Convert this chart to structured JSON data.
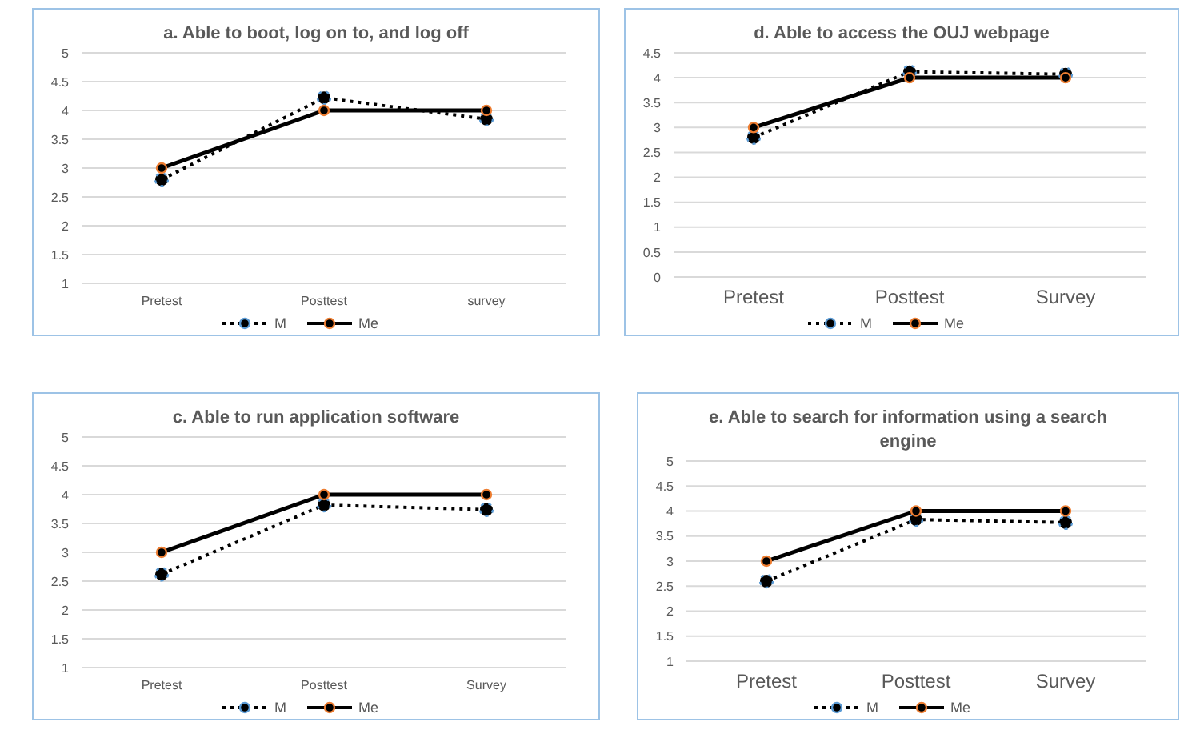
{
  "chart_data": [
    {
      "type": "line",
      "title": "a. Able to boot, log on to, and log off",
      "categories": [
        "Pretest",
        "Posttest",
        "survey"
      ],
      "ylim": [
        1,
        5
      ],
      "yticks": [
        1,
        1.5,
        2,
        2.5,
        3,
        3.5,
        4,
        4.5,
        5
      ],
      "grid": "y",
      "legend": "bottom",
      "marker": "circle",
      "series": [
        {
          "name": "M",
          "color": "#000000",
          "line_style": "dotted",
          "values": [
            2.8,
            4.22,
            3.85
          ]
        },
        {
          "name": "Me",
          "color": "#000000",
          "line_style": "solid",
          "values": [
            3,
            4,
            4
          ]
        }
      ]
    },
    {
      "type": "line",
      "title": "d. Able to access the OUJ webpage",
      "categories": [
        "Pretest",
        "Posttest",
        "Survey"
      ],
      "ylim": [
        0,
        4.5
      ],
      "yticks": [
        0,
        0.5,
        1,
        1.5,
        2,
        2.5,
        3,
        3.5,
        4,
        4.5
      ],
      "grid": "y",
      "legend": "bottom",
      "marker": "circle",
      "series": [
        {
          "name": "M",
          "color": "#000000",
          "line_style": "dotted",
          "values": [
            2.8,
            4.12,
            4.07
          ]
        },
        {
          "name": "Me",
          "color": "#000000",
          "line_style": "solid",
          "values": [
            3,
            4,
            4
          ]
        }
      ]
    },
    {
      "type": "line",
      "title": "c. Able to run application software",
      "categories": [
        "Pretest",
        "Posttest",
        "Survey"
      ],
      "ylim": [
        1,
        5
      ],
      "yticks": [
        1,
        1.5,
        2,
        2.5,
        3,
        3.5,
        4,
        4.5,
        5
      ],
      "grid": "y",
      "legend": "bottom",
      "marker": "circle",
      "series": [
        {
          "name": "M",
          "color": "#000000",
          "line_style": "dotted",
          "values": [
            2.62,
            3.82,
            3.74
          ]
        },
        {
          "name": "Me",
          "color": "#000000",
          "line_style": "solid",
          "values": [
            3,
            4,
            4
          ]
        }
      ]
    },
    {
      "type": "line",
      "title": "e. Able to search for information using a search engine",
      "categories": [
        "Pretest",
        "Posttest",
        "Survey"
      ],
      "ylim": [
        1,
        5
      ],
      "yticks": [
        1,
        1.5,
        2,
        2.5,
        3,
        3.5,
        4,
        4.5,
        5
      ],
      "grid": "y",
      "legend": "bottom",
      "marker": "circle",
      "series": [
        {
          "name": "M",
          "color": "#000000",
          "line_style": "dotted",
          "values": [
            2.6,
            3.83,
            3.77
          ]
        },
        {
          "name": "Me",
          "color": "#000000",
          "line_style": "solid",
          "values": [
            3,
            4,
            4
          ]
        }
      ]
    }
  ]
}
